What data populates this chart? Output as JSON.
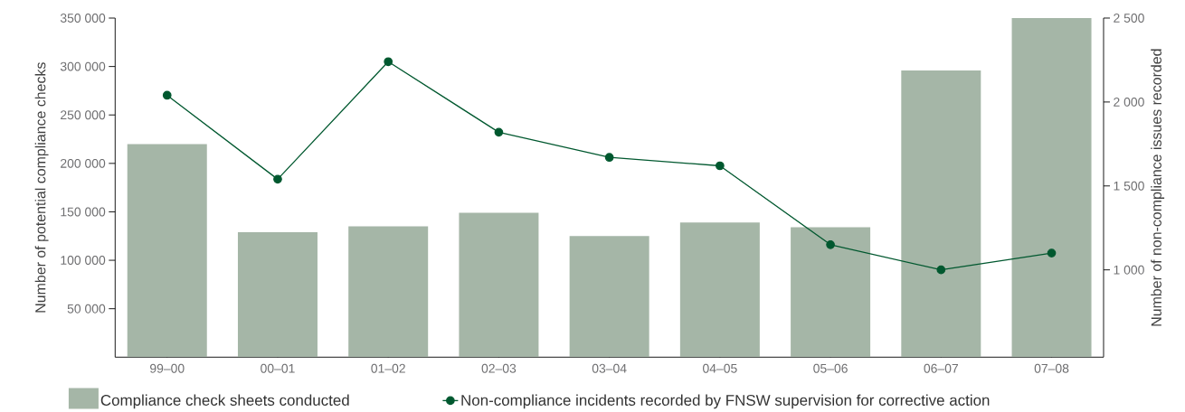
{
  "chart_data": {
    "type": "bar",
    "categories": [
      "99–00",
      "00–01",
      "01–02",
      "02–03",
      "03–04",
      "04–05",
      "05–06",
      "06–07",
      "07–08"
    ],
    "ylabel": "Number of potential compliance checks",
    "y2label": "Number of non-compliance issues recorded",
    "ylim": [
      0,
      350000
    ],
    "yticks": [
      {
        "value": 50000,
        "label": "50 000"
      },
      {
        "value": 100000,
        "label": "100 000"
      },
      {
        "value": 150000,
        "label": "150 000"
      },
      {
        "value": 200000,
        "label": "200 000"
      },
      {
        "value": 250000,
        "label": "250 000"
      },
      {
        "value": 300000,
        "label": "300 000"
      },
      {
        "value": 350000,
        "label": "350 000"
      }
    ],
    "y2lim": [
      480,
      2500
    ],
    "y2ticks": [
      {
        "value": 1000,
        "label": "1 000"
      },
      {
        "value": 1500,
        "label": "1 500"
      },
      {
        "value": 2000,
        "label": "2 000"
      },
      {
        "value": 2500,
        "label": "2 500"
      }
    ],
    "series": [
      {
        "name": "Compliance check sheets conducted",
        "color": "#a5b6a7",
        "values": [
          220000,
          129000,
          135000,
          149000,
          125000,
          139000,
          134000,
          296000,
          350000
        ]
      },
      {
        "name": "Non-compliance incidents recorded by FNSW supervision for corrective action",
        "type": "line",
        "axis": "y2",
        "color": "#00582f",
        "values": [
          2040,
          1540,
          2240,
          1820,
          1670,
          1620,
          1150,
          1000,
          1100
        ]
      }
    ],
    "marker": "circle",
    "legend": "bottom"
  }
}
